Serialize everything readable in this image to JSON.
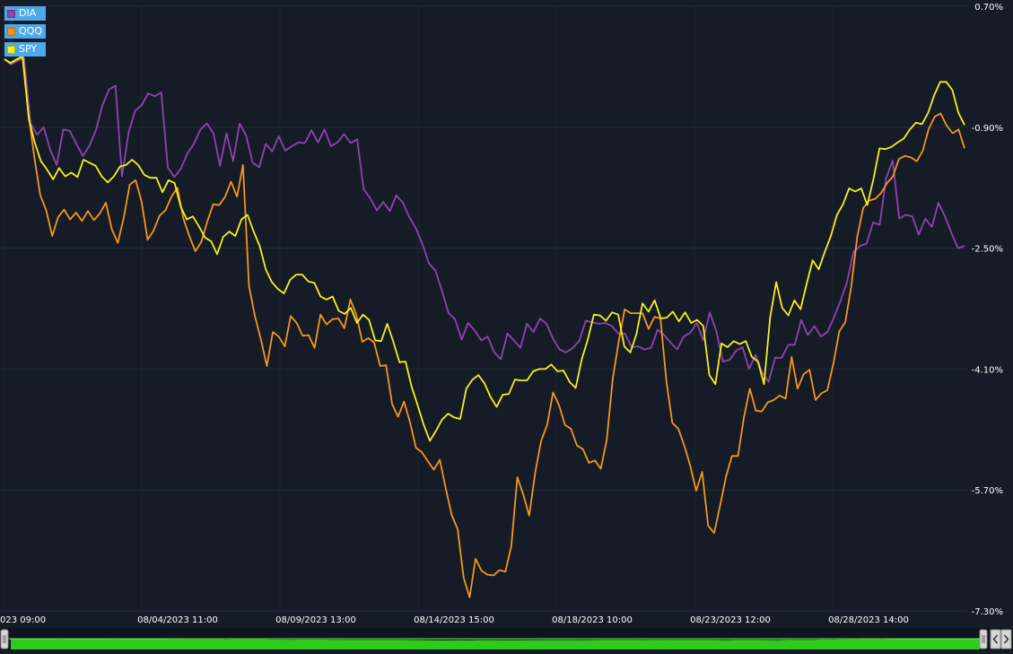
{
  "chart_data": {
    "type": "line",
    "title": "",
    "xlabel": "",
    "ylabel": "",
    "y_unit": "%",
    "ylim": [
      -7.3,
      0.7
    ],
    "y_ticks": [
      "0.70%",
      "-0.90%",
      "-2.50%",
      "-4.10%",
      "-5.70%",
      "-7.30%"
    ],
    "x_ticks": [
      "023 09:00",
      "08/04/2023 11:00",
      "08/09/2023 13:00",
      "08/14/2023 15:00",
      "08/18/2023 10:00",
      "08/23/2023 12:00",
      "08/28/2023 14:00"
    ],
    "grid": true,
    "legend": "top-left",
    "series": [
      {
        "name": "DIA",
        "color": "#8e44ad",
        "values": [
          0.0,
          -0.07,
          -0.02,
          0.02,
          -0.85,
          -1.0,
          -0.9,
          -1.2,
          -1.4,
          -0.93,
          -0.95,
          -1.12,
          -1.28,
          -1.15,
          -0.94,
          -0.61,
          -0.4,
          -0.35,
          -1.55,
          -0.97,
          -0.68,
          -0.61,
          -0.45,
          -0.49,
          -0.44,
          -1.43,
          -1.56,
          -1.45,
          -1.25,
          -1.12,
          -0.93,
          -0.85,
          -0.98,
          -1.41,
          -0.98,
          -1.35,
          -0.85,
          -1.01,
          -1.37,
          -1.43,
          -1.12,
          -1.22,
          -1.02,
          -1.21,
          -1.15,
          -1.1,
          -1.11,
          -0.94,
          -1.1,
          -0.93,
          -1.15,
          -1.1,
          -0.99,
          -1.11,
          -1.06,
          -1.72,
          -1.84,
          -2.0,
          -1.89,
          -2.01,
          -1.8,
          -1.9,
          -2.09,
          -2.24,
          -2.45,
          -2.7,
          -2.8,
          -3.07,
          -3.36,
          -3.44,
          -3.71,
          -3.49,
          -3.59,
          -3.72,
          -3.67,
          -3.88,
          -3.97,
          -3.63,
          -3.72,
          -3.82,
          -3.5,
          -3.61,
          -3.43,
          -3.5,
          -3.7,
          -3.84,
          -3.88,
          -3.82,
          -3.73,
          -3.46,
          -3.48,
          -3.5,
          -3.49,
          -3.53,
          -3.63,
          -3.63,
          -3.81,
          -3.8,
          -3.84,
          -3.82,
          -3.58,
          -3.65,
          -3.75,
          -3.84,
          -3.67,
          -3.62,
          -3.49,
          -3.72,
          -3.35,
          -3.6,
          -4.0,
          -3.98,
          -3.86,
          -3.81,
          -4.1,
          -3.91,
          -4.14,
          -4.27,
          -3.95,
          -3.95,
          -3.78,
          -3.78,
          -3.45,
          -3.65,
          -3.53,
          -3.67,
          -3.61,
          -3.42,
          -3.2,
          -2.95,
          -2.55,
          -2.47,
          -2.44,
          -2.16,
          -2.19,
          -1.57,
          -1.34,
          -2.11,
          -2.06,
          -2.08,
          -2.32,
          -2.11,
          -2.22,
          -1.9,
          -2.08,
          -2.3,
          -2.5,
          -2.47
        ]
      },
      {
        "name": "QQQ",
        "color": "#f5961c",
        "values": [
          0.0,
          -0.05,
          -0.01,
          0.03,
          -0.71,
          -1.29,
          -1.8,
          -2.0,
          -2.34,
          -2.09,
          -1.99,
          -2.12,
          -2.03,
          -2.14,
          -2.01,
          -2.13,
          -2.04,
          -1.9,
          -2.25,
          -2.43,
          -2.1,
          -1.66,
          -1.6,
          -1.89,
          -2.39,
          -2.27,
          -2.07,
          -2.0,
          -1.82,
          -1.7,
          -2.11,
          -2.34,
          -2.54,
          -2.42,
          -2.15,
          -1.92,
          -1.93,
          -1.82,
          -1.62,
          -1.82,
          -1.4,
          -3.0,
          -3.4,
          -3.71,
          -4.06,
          -3.61,
          -3.67,
          -3.8,
          -3.4,
          -3.49,
          -3.66,
          -3.65,
          -3.82,
          -3.38,
          -3.51,
          -3.44,
          -3.43,
          -3.56,
          -3.18,
          -3.38,
          -3.74,
          -3.69,
          -3.75,
          -4.06,
          -4.05,
          -4.56,
          -4.73,
          -4.53,
          -4.8,
          -5.14,
          -5.2,
          -5.32,
          -5.43,
          -5.3,
          -5.68,
          -6.03,
          -6.22,
          -6.86,
          -7.12,
          -6.61,
          -6.77,
          -6.82,
          -6.83,
          -6.76,
          -6.78,
          -6.44,
          -5.53,
          -5.76,
          -6.04,
          -5.47,
          -5.05,
          -4.84,
          -4.41,
          -4.58,
          -4.84,
          -4.89,
          -5.11,
          -5.16,
          -5.34,
          -5.31,
          -5.42,
          -5.04,
          -4.23,
          -3.74,
          -3.31,
          -3.36,
          -3.36,
          -3.36,
          -3.57,
          -3.41,
          -3.43,
          -4.26,
          -4.81,
          -4.89,
          -5.11,
          -5.38,
          -5.71,
          -5.46,
          -6.17,
          -6.27,
          -5.91,
          -5.52,
          -5.25,
          -5.25,
          -4.74,
          -4.36,
          -4.65,
          -4.66,
          -4.54,
          -4.51,
          -4.45,
          -4.49,
          -3.94,
          -4.36,
          -4.17,
          -4.11,
          -4.51,
          -4.42,
          -4.38,
          -4.03,
          -3.6,
          -3.48,
          -3.01,
          -2.35,
          -1.97,
          -1.87,
          -1.85,
          -1.77,
          -1.64,
          -1.55,
          -1.32,
          -1.28,
          -1.3,
          -1.35,
          -1.21,
          -0.92,
          -0.76,
          -0.72,
          -0.88,
          -0.98,
          -0.93,
          -1.18
        ]
      },
      {
        "name": "SPY",
        "color": "#f5f01c",
        "values": [
          0.0,
          -0.05,
          0.0,
          0.04,
          -0.79,
          -1.11,
          -1.35,
          -1.46,
          -1.59,
          -1.44,
          -1.55,
          -1.5,
          -1.56,
          -1.33,
          -1.37,
          -1.41,
          -1.55,
          -1.63,
          -1.55,
          -1.42,
          -1.4,
          -1.33,
          -1.4,
          -1.53,
          -1.57,
          -1.57,
          -1.76,
          -1.6,
          -1.64,
          -1.95,
          -2.12,
          -2.08,
          -2.21,
          -2.36,
          -2.41,
          -2.58,
          -2.35,
          -2.28,
          -2.34,
          -2.12,
          -2.06,
          -2.28,
          -2.47,
          -2.78,
          -2.95,
          -3.04,
          -3.1,
          -2.92,
          -2.85,
          -2.85,
          -2.94,
          -2.96,
          -3.14,
          -3.18,
          -3.14,
          -3.33,
          -3.37,
          -3.29,
          -3.49,
          -3.38,
          -3.45,
          -3.72,
          -3.73,
          -3.5,
          -3.74,
          -4.01,
          -4.0,
          -4.33,
          -4.58,
          -4.84,
          -5.05,
          -4.92,
          -4.77,
          -4.69,
          -4.74,
          -4.76,
          -4.36,
          -4.24,
          -4.18,
          -4.29,
          -4.47,
          -4.6,
          -4.44,
          -4.43,
          -4.24,
          -4.25,
          -4.25,
          -4.13,
          -4.1,
          -4.1,
          -4.04,
          -4.13,
          -4.12,
          -4.27,
          -4.35,
          -3.97,
          -3.71,
          -3.38,
          -3.39,
          -3.46,
          -3.35,
          -3.38,
          -3.8,
          -3.88,
          -3.64,
          -3.23,
          -3.34,
          -3.19,
          -3.43,
          -3.42,
          -3.34,
          -3.47,
          -3.35,
          -3.49,
          -3.45,
          -3.53,
          -4.18,
          -4.3,
          -3.76,
          -3.81,
          -3.73,
          -3.77,
          -3.73,
          -3.94,
          -4.0,
          -4.3,
          -3.42,
          -2.95,
          -3.29,
          -3.39,
          -3.19,
          -3.31,
          -2.98,
          -2.66,
          -2.78,
          -2.55,
          -2.34,
          -2.06,
          -1.92,
          -1.71,
          -1.75,
          -1.71,
          -1.93,
          -1.59,
          -1.18,
          -1.19,
          -1.16,
          -1.1,
          -1.05,
          -0.93,
          -0.84,
          -0.86,
          -0.71,
          -0.48,
          -0.3,
          -0.3,
          -0.41,
          -0.71,
          -0.87
        ]
      }
    ]
  },
  "scrollbar": {
    "left_icon": "grip-icon",
    "right_icons": [
      "grip-icon",
      "chevron-left-icon",
      "chevron-right-icon"
    ],
    "navigator_color": "#2ecc1a"
  }
}
